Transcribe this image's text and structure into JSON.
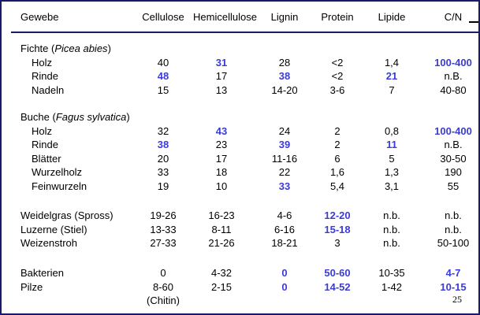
{
  "headers": [
    "Gewebe",
    "Cellulose",
    "Hemicellulose",
    "Lignin",
    "Protein",
    "Lipide",
    "C/N"
  ],
  "groups": [
    {
      "title_prefix": "Fichte (",
      "title_species": "Picea abies",
      "title_suffix": ")",
      "rows": [
        {
          "name": "Holz",
          "cells": [
            {
              "v": "40"
            },
            {
              "v": "31",
              "hl": true
            },
            {
              "v": "28"
            },
            {
              "v": "<2"
            },
            {
              "v": "1,4"
            },
            {
              "v": "100-400",
              "hl": true
            }
          ]
        },
        {
          "name": "Rinde",
          "cells": [
            {
              "v": "48",
              "hl": true
            },
            {
              "v": "17"
            },
            {
              "v": "38",
              "hl": true
            },
            {
              "v": "<2"
            },
            {
              "v": "21",
              "hl": true
            },
            {
              "v": "n.B."
            }
          ]
        },
        {
          "name": "Nadeln",
          "cells": [
            {
              "v": "15"
            },
            {
              "v": "13"
            },
            {
              "v": "14-20"
            },
            {
              "v": "3-6"
            },
            {
              "v": "7"
            },
            {
              "v": "40-80"
            }
          ]
        }
      ]
    },
    {
      "title_prefix": "Buche (",
      "title_species": "Fagus sylvatica",
      "title_suffix": ")",
      "rows": [
        {
          "name": "Holz",
          "cells": [
            {
              "v": "32"
            },
            {
              "v": "43",
              "hl": true
            },
            {
              "v": "24"
            },
            {
              "v": "2"
            },
            {
              "v": "0,8"
            },
            {
              "v": "100-400",
              "hl": true
            }
          ]
        },
        {
          "name": "Rinde",
          "cells": [
            {
              "v": "38",
              "hl": true
            },
            {
              "v": "23"
            },
            {
              "v": "39",
              "hl": true
            },
            {
              "v": "2"
            },
            {
              "v": "11",
              "hl": true
            },
            {
              "v": "n.B."
            }
          ]
        },
        {
          "name": "Blätter",
          "cells": [
            {
              "v": "20"
            },
            {
              "v": "17"
            },
            {
              "v": "11-16"
            },
            {
              "v": "6"
            },
            {
              "v": "5"
            },
            {
              "v": "30-50"
            }
          ]
        },
        {
          "name": "Wurzelholz",
          "cells": [
            {
              "v": "33"
            },
            {
              "v": "18"
            },
            {
              "v": "22"
            },
            {
              "v": "1,6"
            },
            {
              "v": "1,3"
            },
            {
              "v": "190"
            }
          ]
        },
        {
          "name": "Feinwurzeln",
          "cells": [
            {
              "v": "19"
            },
            {
              "v": "10"
            },
            {
              "v": "33",
              "hl": true
            },
            {
              "v": "5,4"
            },
            {
              "v": "3,1"
            },
            {
              "v": "55"
            }
          ]
        }
      ]
    }
  ],
  "plants": [
    {
      "name": "Weidelgras (Spross)",
      "cells": [
        {
          "v": "19-26"
        },
        {
          "v": "16-23"
        },
        {
          "v": "4-6"
        },
        {
          "v": "12-20",
          "hl": true
        },
        {
          "v": "n.b."
        },
        {
          "v": "n.b."
        }
      ]
    },
    {
      "name": "Luzerne (Stiel)",
      "cells": [
        {
          "v": "13-33"
        },
        {
          "v": "8-11"
        },
        {
          "v": "6-16"
        },
        {
          "v": "15-18",
          "hl": true
        },
        {
          "v": "n.b."
        },
        {
          "v": "n.b."
        }
      ]
    },
    {
      "name": "Weizenstroh",
      "cells": [
        {
          "v": "27-33"
        },
        {
          "v": "21-26"
        },
        {
          "v": "18-21"
        },
        {
          "v": "3"
        },
        {
          "v": "n.b."
        },
        {
          "v": "50-100"
        }
      ]
    }
  ],
  "microbes": [
    {
      "name": "Bakterien",
      "cells": [
        {
          "v": "0"
        },
        {
          "v": "4-32"
        },
        {
          "v": "0",
          "hl": true
        },
        {
          "v": "50-60",
          "hl": true
        },
        {
          "v": "10-35"
        },
        {
          "v": "4-7",
          "hl": true
        }
      ]
    },
    {
      "name": "Pilze",
      "cells": [
        {
          "v": "8-60"
        },
        {
          "v": "2-15"
        },
        {
          "v": "0",
          "hl": true
        },
        {
          "v": "14-52",
          "hl": true
        },
        {
          "v": "1-42"
        },
        {
          "v": "10-15",
          "hl": true
        }
      ]
    }
  ],
  "pilze_note": "(Chitin)",
  "page_number": "25"
}
